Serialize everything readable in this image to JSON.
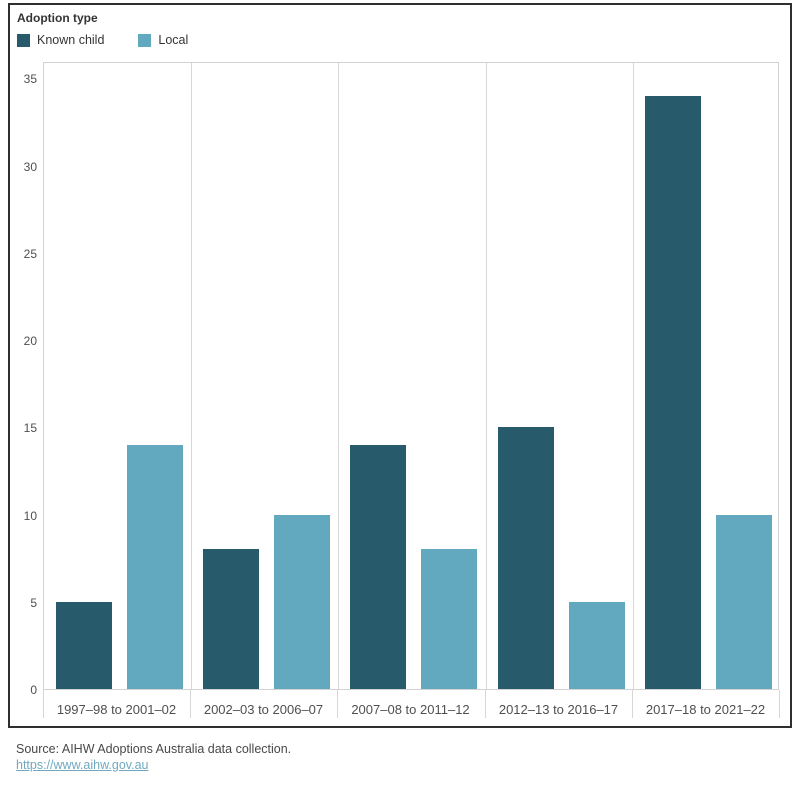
{
  "legend": {
    "title": "Adoption type",
    "items": [
      {
        "label": "Known child",
        "color": "#275A6B"
      },
      {
        "label": "Local",
        "color": "#62A9BF"
      }
    ]
  },
  "chart_data": {
    "type": "bar",
    "title": "",
    "xlabel": "",
    "ylabel": "",
    "categories": [
      "1997–98 to 2001–02",
      "2002–03 to 2006–07",
      "2007–08 to 2011–12",
      "2012–13 to 2016–17",
      "2017–18 to 2021–22"
    ],
    "series": [
      {
        "name": "Known child",
        "color": "#275A6B",
        "values": [
          5,
          8,
          14,
          15,
          34
        ]
      },
      {
        "name": "Local",
        "color": "#62A9BF",
        "values": [
          14,
          10,
          8,
          5,
          10
        ]
      }
    ],
    "yticks": [
      0,
      5,
      10,
      15,
      20,
      25,
      30,
      35
    ],
    "ylim": [
      0,
      36
    ],
    "grid": "vertical-column-dividers-only",
    "legend_position": "top-left"
  },
  "footer": {
    "source": "Source: AIHW Adoptions Australia data collection.",
    "link": "https://www.aihw.gov.au"
  },
  "colors": {
    "known_child": "#275A6B",
    "local": "#62A9BF",
    "frame_border": "#2f2f2f",
    "axis_line": "#d2d2d2",
    "tick_text": "#4f4f4f",
    "link": "#70a9bf"
  }
}
